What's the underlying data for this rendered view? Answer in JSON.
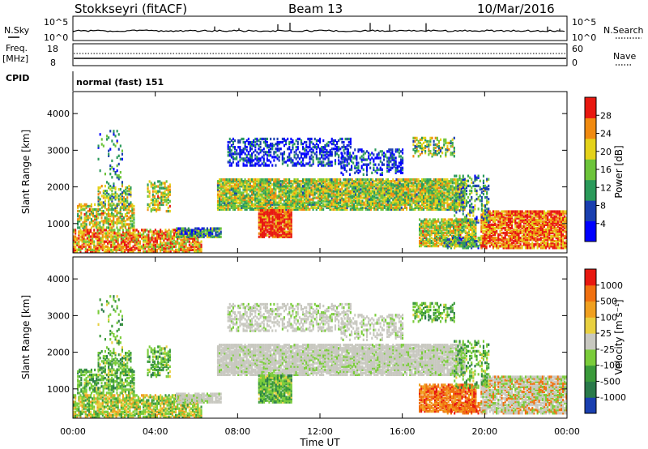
{
  "header": {
    "station": "Stokkseyri (fitACF)",
    "beam": "Beam 13",
    "date": "10/Mar/2016"
  },
  "strip_panels": {
    "nsky": {
      "label": "N.Sky",
      "left_ticks": [
        "10^5",
        "10^0"
      ],
      "right_ticks": [
        "10^5",
        "10^0"
      ],
      "right_label": "N.Search"
    },
    "freq": {
      "label_line1": "Freq.",
      "label_line2": "[MHz]",
      "left_ticks": [
        "18",
        "8"
      ],
      "right_ticks": [
        "60",
        "0"
      ],
      "right_label": "Nave"
    },
    "cpid": {
      "label": "CPID",
      "text": "normal (fast) 151"
    }
  },
  "chart_data": [
    {
      "type": "heatmap",
      "name": "power",
      "ylabel": "Slant Range [km]",
      "xlabel": "",
      "ylim": [
        200,
        4600
      ],
      "yticks": [
        "4000",
        "3000",
        "2000",
        "1000"
      ],
      "colorbar": {
        "label": "Power [dB]",
        "ticks": [
          "28",
          "24",
          "20",
          "16",
          "12",
          "8",
          "4"
        ],
        "colors": [
          "#0000ff",
          "#1a3fb0",
          "#2a9a5a",
          "#6cc43a",
          "#e4d21a",
          "#f08a10",
          "#e81810"
        ]
      }
    },
    {
      "type": "heatmap",
      "name": "velocity",
      "ylabel": "Slant Range [km]",
      "xlabel": "Time UT",
      "ylim": [
        200,
        4600
      ],
      "yticks": [
        "4000",
        "3000",
        "2000",
        "1000"
      ],
      "xticks": [
        "00:00",
        "04:00",
        "08:00",
        "12:00",
        "16:00",
        "20:00",
        "00:00"
      ],
      "colorbar": {
        "label": "Velocity [m s⁻¹]",
        "ticks": [
          "1000",
          "500",
          "100",
          "25",
          "-25",
          "-100",
          "-500",
          "-1000"
        ],
        "colors": [
          "#1a3fb0",
          "#2a7a4a",
          "#3a9a3a",
          "#7acc3a",
          "#c8c8c0",
          "#e8d040",
          "#f0a020",
          "#f07010",
          "#e81810"
        ]
      }
    }
  ]
}
